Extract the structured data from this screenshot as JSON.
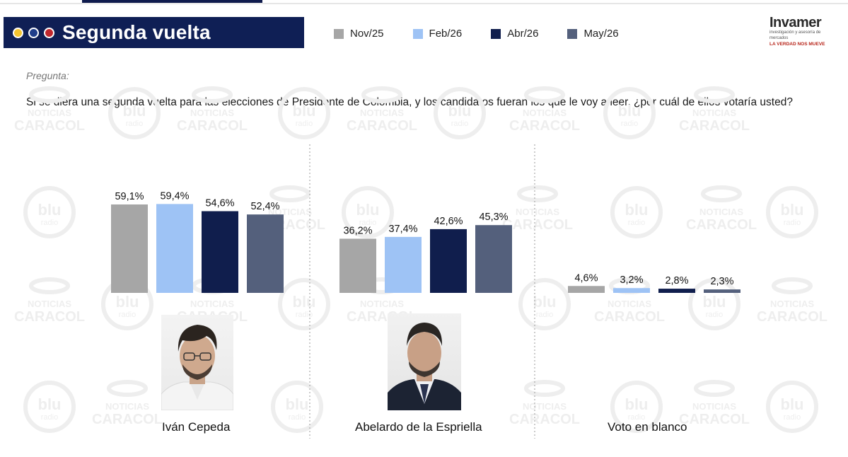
{
  "header": {
    "title": "Segunda vuelta",
    "dots": [
      "#f4c430",
      "#1f3d8a",
      "#c0272d"
    ]
  },
  "legend": [
    {
      "label": "Nov/25",
      "color": "#a6a6a6"
    },
    {
      "label": "Feb/26",
      "color": "#9ec3f5"
    },
    {
      "label": "Abr/26",
      "color": "#101e4d"
    },
    {
      "label": "May/26",
      "color": "#54607c"
    }
  ],
  "logo": {
    "word": "Invamer",
    "subtitle": "investigación y asesoría de mercados",
    "tagline": "LA VERDAD NOS MUEVE"
  },
  "question": {
    "label": "Pregunta:",
    "text": "Si se diera una segunda vuelta para las elecciones de Presidente de Colombia, y los candidatos fueran los que le voy a leer, ¿por cuál de ellos votaría usted?"
  },
  "candidates": [
    {
      "name": "Iván Cepeda"
    },
    {
      "name": "Abelardo de la Espriella"
    },
    {
      "name": "Voto en blanco"
    }
  ],
  "watermarks": [
    "NOTICIAS",
    "CARACOL",
    "blu",
    "radio"
  ],
  "chart_data": {
    "type": "bar",
    "categories": [
      "Iván Cepeda",
      "Abelardo de la Espriella",
      "Voto en blanco"
    ],
    "series": [
      {
        "name": "Nov/25",
        "values": [
          59.1,
          36.2,
          4.6
        ],
        "labels": [
          "59,1%",
          "36,2%",
          "4,6%"
        ]
      },
      {
        "name": "Feb/26",
        "values": [
          59.4,
          37.4,
          3.2
        ],
        "labels": [
          "59,4%",
          "37,4%",
          "3,2%"
        ]
      },
      {
        "name": "Abr/26",
        "values": [
          54.6,
          42.6,
          2.8
        ],
        "labels": [
          "54,6%",
          "42,6%",
          "2,8%"
        ]
      },
      {
        "name": "May/26",
        "values": [
          52.4,
          45.3,
          2.3
        ],
        "labels": [
          "52,4%",
          "45,3%",
          "2,3%"
        ]
      }
    ],
    "ylim": [
      0,
      65
    ],
    "grid": false,
    "legend_position": "top"
  }
}
